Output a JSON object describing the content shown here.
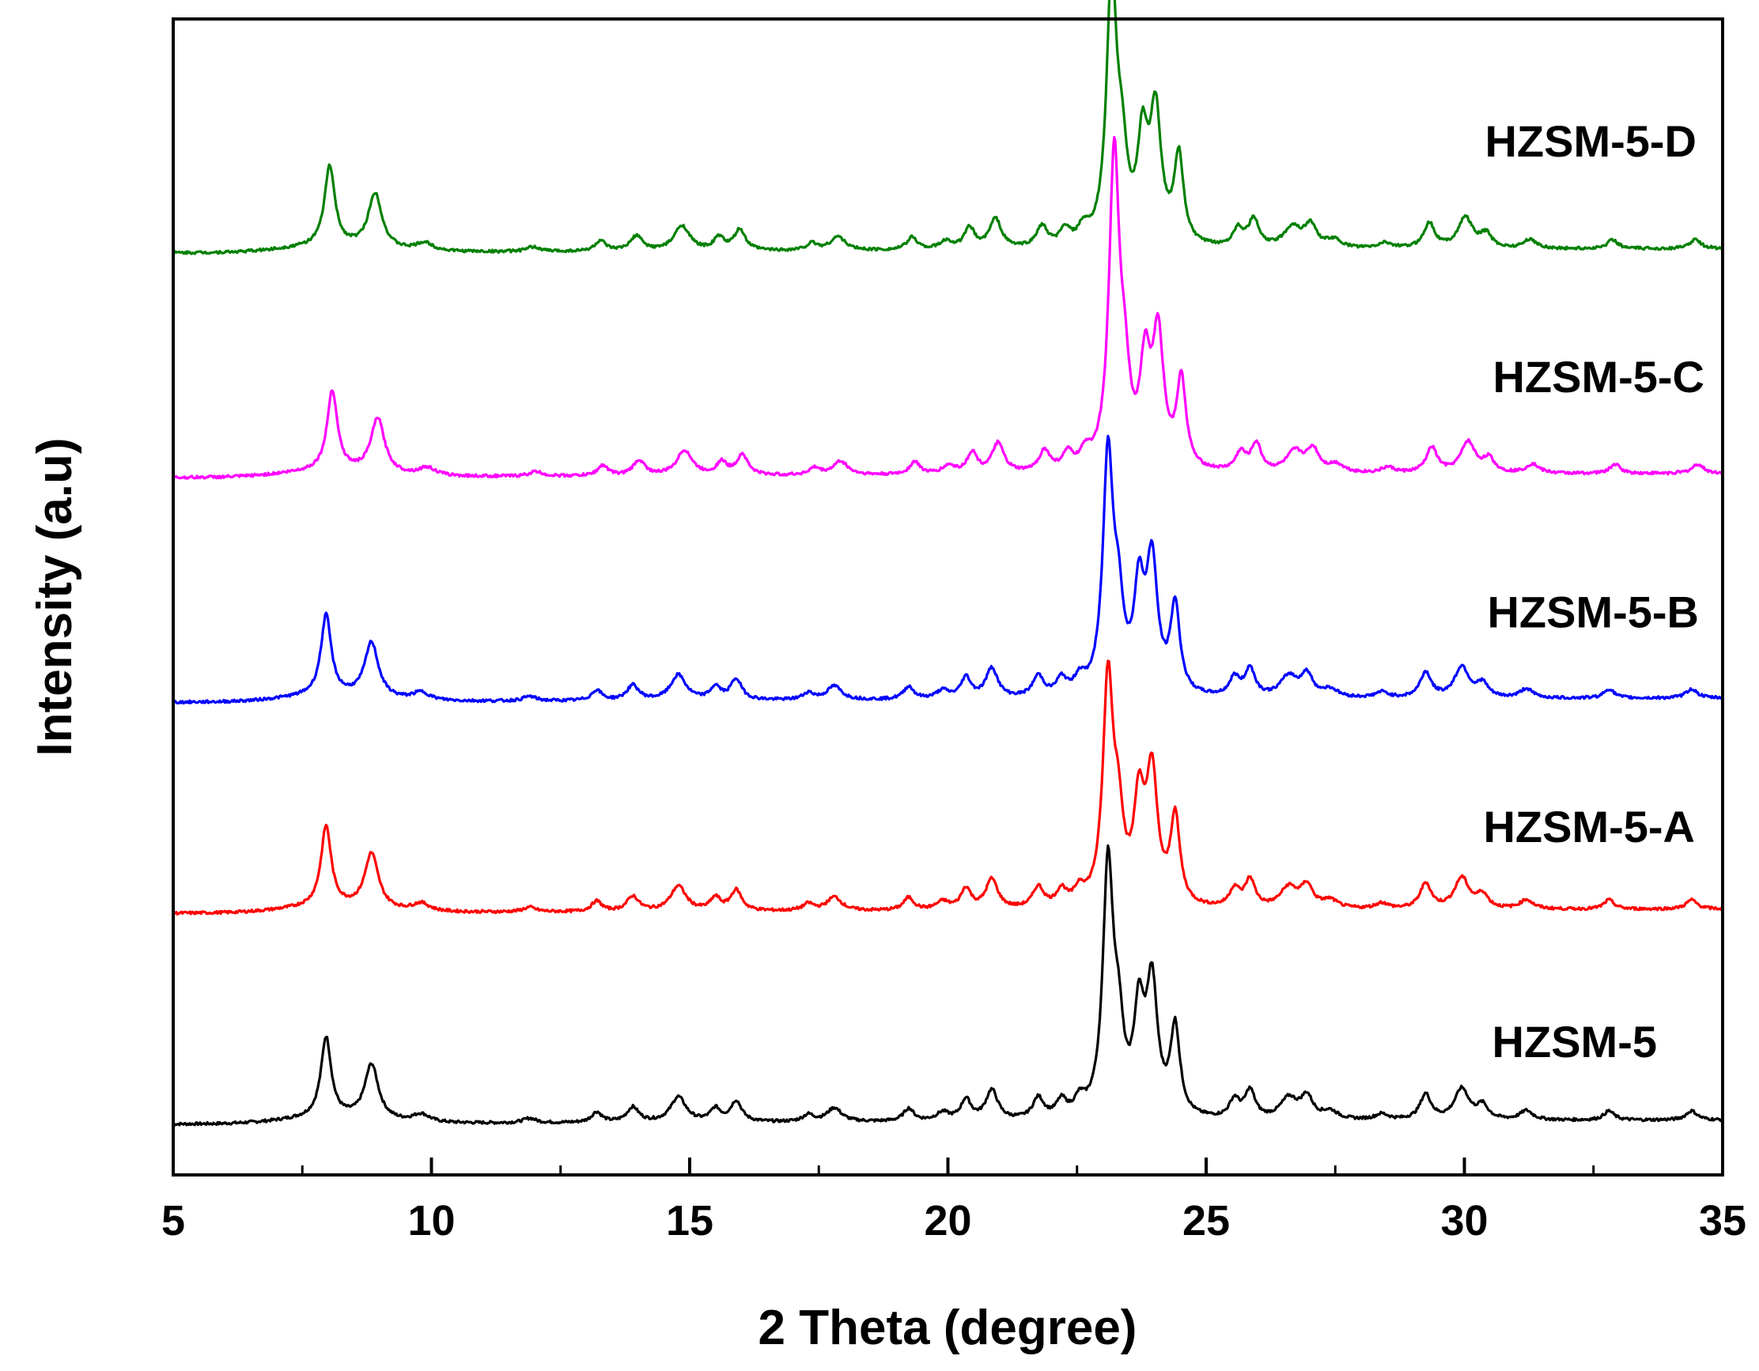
{
  "chart_data": {
    "type": "line",
    "xlabel": "2 Theta (degree)",
    "ylabel": "Intensity (a.u)",
    "xlim": [
      5,
      35
    ],
    "xticks": [
      5,
      10,
      15,
      20,
      25,
      30,
      35
    ],
    "minor_xticks": [
      7.5,
      12.5,
      17.5,
      22.5,
      27.5,
      32.5
    ],
    "y_tick_labels": "none",
    "grid": false,
    "baseline_drift_per_degree": 0.06,
    "peaks_common": [
      {
        "x": 7.96,
        "h": 3.5,
        "w": 0.12
      },
      {
        "x": 8.84,
        "h": 2.4,
        "w": 0.16
      },
      {
        "x": 9.8,
        "h": 0.35,
        "w": 0.2
      },
      {
        "x": 11.9,
        "h": 0.2,
        "w": 0.15
      },
      {
        "x": 13.2,
        "h": 0.45,
        "w": 0.12
      },
      {
        "x": 13.9,
        "h": 0.65,
        "w": 0.14
      },
      {
        "x": 14.78,
        "h": 1.1,
        "w": 0.18
      },
      {
        "x": 15.5,
        "h": 0.55,
        "w": 0.12
      },
      {
        "x": 15.9,
        "h": 0.9,
        "w": 0.13
      },
      {
        "x": 17.3,
        "h": 0.3,
        "w": 0.13
      },
      {
        "x": 17.8,
        "h": 0.6,
        "w": 0.17
      },
      {
        "x": 19.24,
        "h": 0.55,
        "w": 0.12
      },
      {
        "x": 19.9,
        "h": 0.35,
        "w": 0.15
      },
      {
        "x": 20.35,
        "h": 0.9,
        "w": 0.12
      },
      {
        "x": 20.85,
        "h": 1.3,
        "w": 0.14
      },
      {
        "x": 21.75,
        "h": 0.9,
        "w": 0.13
      },
      {
        "x": 22.2,
        "h": 0.7,
        "w": 0.12
      },
      {
        "x": 22.55,
        "h": 0.65,
        "w": 0.12
      },
      {
        "x": 23.1,
        "h": 10.8,
        "w": 0.12
      },
      {
        "x": 23.3,
        "h": 3.2,
        "w": 0.12
      },
      {
        "x": 23.7,
        "h": 4.2,
        "w": 0.12
      },
      {
        "x": 23.95,
        "h": 5.6,
        "w": 0.13
      },
      {
        "x": 24.4,
        "h": 3.8,
        "w": 0.11
      },
      {
        "x": 25.55,
        "h": 0.8,
        "w": 0.12
      },
      {
        "x": 25.85,
        "h": 1.2,
        "w": 0.12
      },
      {
        "x": 26.6,
        "h": 0.9,
        "w": 0.2
      },
      {
        "x": 26.95,
        "h": 0.95,
        "w": 0.14
      },
      {
        "x": 27.4,
        "h": 0.35,
        "w": 0.18
      },
      {
        "x": 28.4,
        "h": 0.25,
        "w": 0.15
      },
      {
        "x": 29.25,
        "h": 1.1,
        "w": 0.13
      },
      {
        "x": 29.95,
        "h": 1.35,
        "w": 0.17
      },
      {
        "x": 30.35,
        "h": 0.6,
        "w": 0.13
      },
      {
        "x": 31.2,
        "h": 0.4,
        "w": 0.15
      },
      {
        "x": 32.8,
        "h": 0.4,
        "w": 0.12
      },
      {
        "x": 34.4,
        "h": 0.4,
        "w": 0.13
      }
    ],
    "series": [
      {
        "name": "HZSM-5",
        "color": "#000000",
        "offset": 0,
        "shift": 0,
        "peak_scale": 1.0,
        "main_peak_scale": 1.0
      },
      {
        "name": "HZSM-5-A",
        "color": "#ff0000",
        "offset": 9.2,
        "shift": 0,
        "peak_scale": 1.0,
        "main_peak_scale": 0.9
      },
      {
        "name": "HZSM-5-B",
        "color": "#0000ff",
        "offset": 18.4,
        "shift": 0,
        "peak_scale": 1.0,
        "main_peak_scale": 0.95
      },
      {
        "name": "HZSM-5-C",
        "color": "#ff00ff",
        "offset": 28.2,
        "shift": 0.12,
        "peak_scale": 1.0,
        "main_peak_scale": 1.25
      },
      {
        "name": "HZSM-5-D",
        "color": "#008000",
        "offset": 38.0,
        "shift": 0.07,
        "peak_scale": 1.0,
        "main_peak_scale": 1.05
      }
    ]
  }
}
